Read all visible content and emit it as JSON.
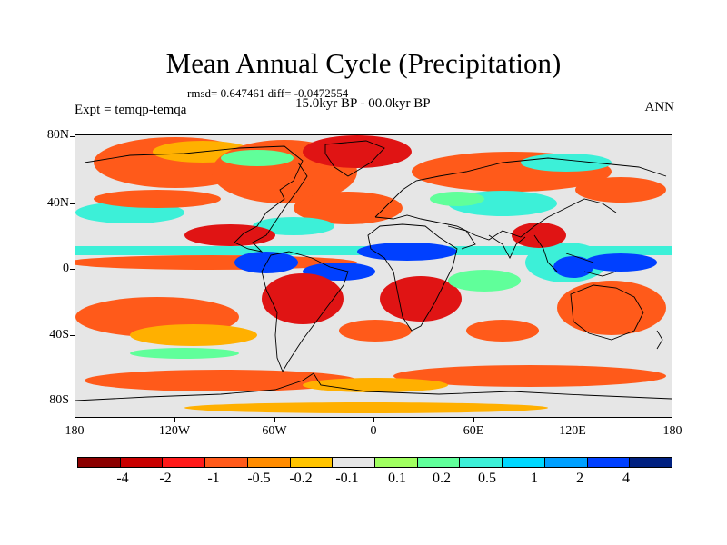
{
  "title": "Mean Annual Cycle (Precipitation)",
  "stats": "rmsd= 0.647461 diff= -0.0472554",
  "period": "15.0kyr BP - 00.0kyr BP",
  "expt": "Expt = temqp-temqa",
  "season": "ANN",
  "lat_labels": [
    "80N",
    "40N",
    "0",
    "40S",
    "80S"
  ],
  "lon_labels": [
    "180",
    "120W",
    "60W",
    "0",
    "60E",
    "120E",
    "180"
  ],
  "colorbar": {
    "colors": [
      "#8b0000",
      "#c80000",
      "#ff1a1a",
      "#ff5a1a",
      "#ff8c00",
      "#ffc400",
      "#e6e6e6",
      "#a0ff60",
      "#60ff9a",
      "#3cf0d8",
      "#00d8ff",
      "#00a0ff",
      "#0040ff",
      "#002080"
    ],
    "labels": [
      "-4",
      "-2",
      "-1",
      "-0.5",
      "-0.2",
      "-0.1",
      "0.1",
      "0.2",
      "0.5",
      "1",
      "2",
      "4"
    ]
  },
  "colors": {
    "neutral": "#e6e6e6",
    "dry": "#ff5a1a",
    "dry_strong": "#e01414",
    "dry_weak": "#ffb000",
    "wet": "#3cf0d8",
    "wet_strong": "#0040ff",
    "wet_light": "#60ff9a"
  }
}
